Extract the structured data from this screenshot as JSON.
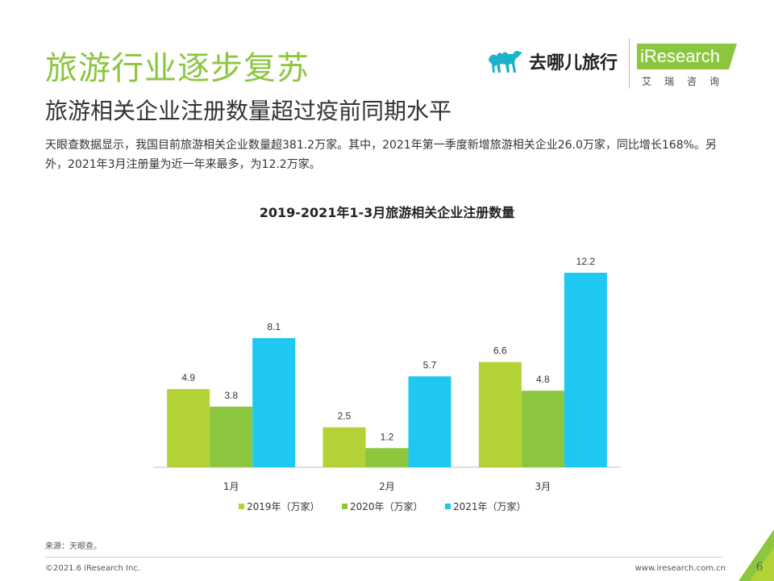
{
  "header": {
    "title": "旅游行业逐步复苏",
    "subtitle": "旅游相关企业注册数量超过疫前同期水平",
    "description": "天眼查数据显示，我国目前旅游相关企业数量超381.2万家。其中，2021年第一季度新增旅游相关企业26.0万家，同比增长168%。另外，2021年3月注册量为近一年来最多，为12.2万家。"
  },
  "logos": {
    "qunar_text": "去哪儿旅行",
    "iresearch_text": "iResearch",
    "iresearch_cn": "艾瑞咨询"
  },
  "chart_data": {
    "type": "bar",
    "title": "2019-2021年1-3月旅游相关企业注册数量",
    "categories": [
      "1月",
      "2月",
      "3月"
    ],
    "series": [
      {
        "name": "2019年（万家）",
        "values": [
          4.9,
          2.5,
          6.6
        ],
        "color": "#b2d235"
      },
      {
        "name": "2020年（万家）",
        "values": [
          3.8,
          1.2,
          4.8
        ],
        "color": "#8cc63f"
      },
      {
        "name": "2021年（万家）",
        "values": [
          8.1,
          5.7,
          12.2
        ],
        "color": "#1ec8f0"
      }
    ],
    "ylim": [
      0,
      12.2
    ],
    "grid": false,
    "legend": "bottom"
  },
  "footer": {
    "source": "来源：天眼查。",
    "copyright": "©2021.6 iResearch Inc.",
    "website": "www.iresearch.com.cn",
    "page": "6"
  }
}
